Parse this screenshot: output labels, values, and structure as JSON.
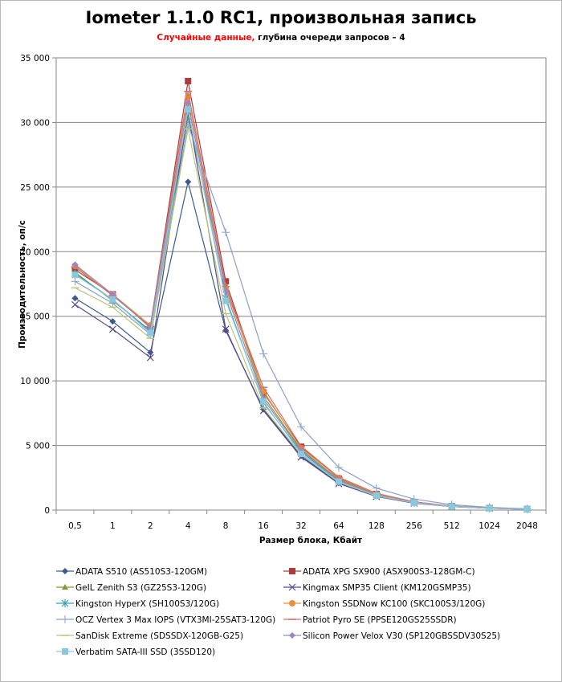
{
  "chart_data": {
    "type": "line",
    "title": "Iometer 1.1.0 RC1, произвольная запись",
    "subtitle_red": "Случайные данные,",
    "subtitle_rest": "глубина очереди запросов – 4",
    "xlabel": "Размер блока, Кбайт",
    "ylabel": "Производительность, оп/с",
    "categories": [
      "0,5",
      "1",
      "2",
      "4",
      "8",
      "16",
      "32",
      "64",
      "128",
      "256",
      "512",
      "1024",
      "2048"
    ],
    "ylim": [
      0,
      35000
    ],
    "yticks": [
      0,
      5000,
      10000,
      15000,
      20000,
      25000,
      30000,
      35000
    ],
    "ytick_labels": [
      "0",
      "5 000",
      "10 000",
      "15 000",
      "20 000",
      "25 000",
      "30 000",
      "35 000"
    ],
    "grid": true,
    "legend_position": "bottom",
    "series": [
      {
        "name": "ADATA S510 (AS510S3-120GM)",
        "color": "#3c5a8e",
        "marker": "diamond",
        "values": [
          16400,
          14600,
          12200,
          25400,
          13900,
          7800,
          4200,
          2100,
          1100,
          580,
          270,
          140,
          70
        ]
      },
      {
        "name": "ADATA XPG SX900 (ASX900S3-128GM-C)",
        "color": "#b03a3a",
        "marker": "square",
        "values": [
          18600,
          16700,
          14200,
          33200,
          17700,
          9100,
          4900,
          2450,
          1250,
          620,
          310,
          160,
          80
        ]
      },
      {
        "name": "GeIL Zenith S3 (GZ25S3-120G)",
        "color": "#7f9a3a",
        "marker": "triangle",
        "values": [
          18400,
          16200,
          13900,
          30400,
          17400,
          8800,
          4700,
          2350,
          1180,
          590,
          295,
          150,
          75
        ]
      },
      {
        "name": "Kingmax SMP35 Client (KM120GSMP35)",
        "color": "#5a4a8a",
        "marker": "x",
        "values": [
          15900,
          14000,
          11800,
          30800,
          14000,
          7700,
          4100,
          2050,
          1050,
          530,
          265,
          135,
          68
        ]
      },
      {
        "name": "Kingston HyperX (SH100S3/120G)",
        "color": "#3aa0b8",
        "marker": "asterisk",
        "values": [
          18300,
          16300,
          13800,
          30900,
          16400,
          8300,
          4500,
          2250,
          1150,
          580,
          290,
          145,
          72
        ]
      },
      {
        "name": "Kingston SSDNow KC100 (SKC100S3/120G)",
        "color": "#e8903a",
        "marker": "circle",
        "values": [
          18900,
          16700,
          14300,
          32000,
          17100,
          9200,
          4800,
          2500,
          1250,
          620,
          310,
          155,
          78
        ]
      },
      {
        "name": "OCZ Vertex 3 Max IOPS (VTX3MI-25SAT3-120G)",
        "color": "#8aa0c8",
        "marker": "plus",
        "values": [
          17700,
          16000,
          13600,
          29800,
          21500,
          12100,
          6450,
          3300,
          1700,
          850,
          420,
          210,
          105
        ]
      },
      {
        "name": "Patriot Pyro SE (PPSE120GS25SSDR)",
        "color": "#d07070",
        "marker": "dash",
        "values": [
          18800,
          16600,
          14200,
          32400,
          17300,
          9500,
          4950,
          2550,
          1300,
          640,
          320,
          160,
          80
        ]
      },
      {
        "name": "SanDisk Extreme (SDSSDX-120GB-G25)",
        "color": "#b8c87a",
        "marker": "dash",
        "values": [
          17200,
          15700,
          13300,
          29500,
          15200,
          7900,
          4300,
          2150,
          1100,
          560,
          280,
          140,
          70
        ]
      },
      {
        "name": "Silicon Power Velox V30 (SP120GBSSDV30S25)",
        "color": "#9a86c0",
        "marker": "diamond",
        "values": [
          19000,
          16700,
          14100,
          31500,
          16900,
          8600,
          4600,
          2300,
          1150,
          580,
          290,
          145,
          72
        ]
      },
      {
        "name": "Verbatim SATA-III SSD (3SSD120)",
        "color": "#8ac8e0",
        "marker": "square",
        "values": [
          18200,
          16300,
          13700,
          31000,
          16200,
          8400,
          4350,
          2200,
          1120,
          570,
          285,
          142,
          71
        ]
      }
    ]
  }
}
